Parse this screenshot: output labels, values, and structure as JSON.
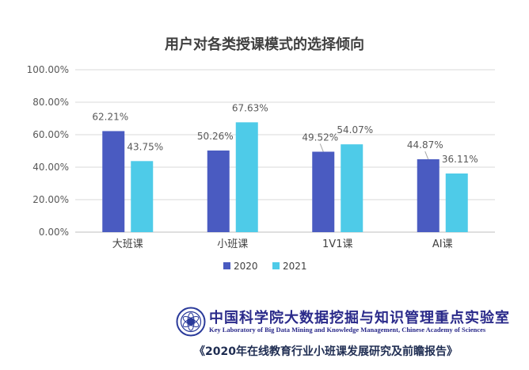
{
  "chart_data": {
    "type": "bar",
    "title": "用户对各类授课模式的选择倾向",
    "categories": [
      "大班课",
      "小班课",
      "1V1课",
      "AI课"
    ],
    "series": [
      {
        "name": "2020",
        "values": [
          62.21,
          50.26,
          49.52,
          44.87
        ],
        "labels": [
          "62.21%",
          "50.26%",
          "49.52%",
          "44.87%"
        ],
        "color": "#4a5bc1"
      },
      {
        "name": "2021",
        "values": [
          43.75,
          67.63,
          54.07,
          36.11
        ],
        "labels": [
          "43.75%",
          "67.63%",
          "54.07%",
          "36.11%"
        ],
        "color": "#4ecbe8"
      }
    ],
    "yticks": [
      "0.00%",
      "20.00%",
      "40.00%",
      "60.00%",
      "80.00%",
      "100.00%"
    ],
    "ylim": [
      0,
      100
    ],
    "xlabel": "",
    "ylabel": "",
    "grid": true,
    "legend_position": "bottom"
  },
  "footer": {
    "org_name_cn": "中国科学院大数据挖掘与知识管理重点实验室",
    "org_name_en": "Key Laboratory of Big Data Mining and Knowledge Management, Chinese Academy of Sciences",
    "report_title": "《2020年在线教育行业小班课发展研究及前瞻报告》",
    "logo_icon": "cas-logo-icon"
  }
}
